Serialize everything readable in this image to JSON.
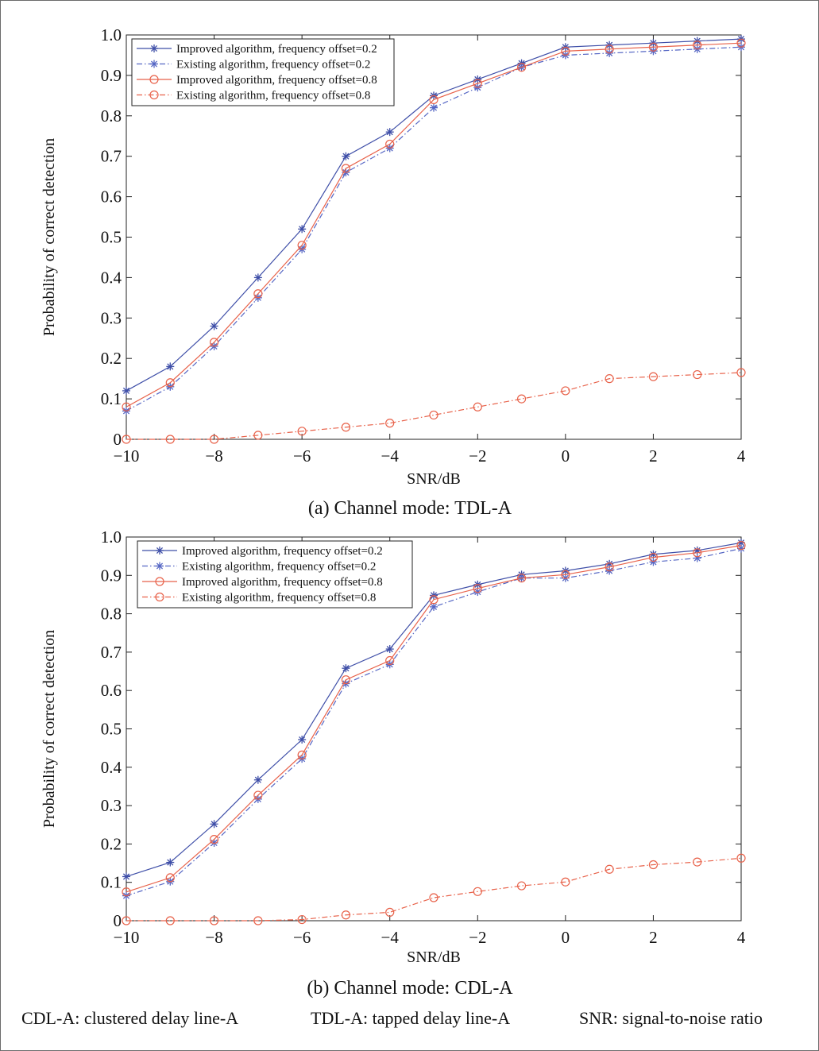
{
  "colors": {
    "improved_02": "#3f4fa8",
    "existing_02": "#5566c4",
    "improved_08": "#e8624a",
    "existing_08": "#e8624a"
  },
  "chart_data": [
    {
      "type": "line",
      "caption": "(a) Channel mode: TDL-A",
      "xlabel": "SNR/dB",
      "ylabel": "Probability of correct detection",
      "xlim": [
        -10,
        4
      ],
      "ylim": [
        0,
        1.0
      ],
      "xticks": [
        "−10",
        "−8",
        "−6",
        "−4",
        "−2",
        "0",
        "2",
        "4"
      ],
      "yticks": [
        "0",
        "0.1",
        "0.2",
        "0.3",
        "0.4",
        "0.5",
        "0.6",
        "0.7",
        "0.8",
        "0.9",
        "1.0"
      ],
      "grid": false,
      "legend_position": "top-left",
      "x": [
        -10,
        -9,
        -8,
        -7,
        -6,
        -5,
        -4,
        -3,
        -2,
        -1,
        0,
        1,
        2,
        3,
        4
      ],
      "series": [
        {
          "name": "Improved algorithm, frequency offset=0.2",
          "marker": "star",
          "line": "solid",
          "color": "#3f4fa8",
          "values": [
            0.12,
            0.18,
            0.28,
            0.4,
            0.52,
            0.7,
            0.76,
            0.85,
            0.89,
            0.93,
            0.97,
            0.975,
            0.98,
            0.985,
            0.99
          ]
        },
        {
          "name": "Existing algorithm, frequency offset=0.2",
          "marker": "star",
          "line": "dashdot",
          "color": "#5566c4",
          "values": [
            0.07,
            0.13,
            0.23,
            0.35,
            0.47,
            0.66,
            0.72,
            0.82,
            0.87,
            0.92,
            0.95,
            0.955,
            0.96,
            0.965,
            0.97
          ]
        },
        {
          "name": "Improved algorithm, frequency offset=0.8",
          "marker": "circle",
          "line": "solid",
          "color": "#e8624a",
          "values": [
            0.08,
            0.14,
            0.24,
            0.36,
            0.48,
            0.67,
            0.73,
            0.84,
            0.88,
            0.92,
            0.96,
            0.965,
            0.97,
            0.975,
            0.98
          ]
        },
        {
          "name": "Existing algorithm, frequency offset=0.8",
          "marker": "circle",
          "line": "dashdot",
          "color": "#e8624a",
          "values": [
            0.0,
            0.0,
            0.0,
            0.01,
            0.02,
            0.03,
            0.04,
            0.06,
            0.08,
            0.1,
            0.12,
            0.15,
            0.155,
            0.16,
            0.165
          ]
        }
      ]
    },
    {
      "type": "line",
      "caption": "(b) Channel mode: CDL-A",
      "xlabel": "SNR/dB",
      "ylabel": "Probability of correct detection",
      "xlim": [
        -10,
        4
      ],
      "ylim": [
        0,
        1.0
      ],
      "xticks": [
        "−10",
        "−8",
        "−6",
        "−4",
        "−2",
        "0",
        "2",
        "4"
      ],
      "yticks": [
        "0",
        "0.1",
        "0.2",
        "0.3",
        "0.4",
        "0.5",
        "0.6",
        "0.7",
        "0.8",
        "0.9",
        "1.0"
      ],
      "grid": false,
      "legend_position": "top-left",
      "x": [
        -10,
        -9,
        -8,
        -7,
        -6,
        -5,
        -4,
        -3,
        -2,
        -1,
        0,
        1,
        2,
        3,
        4
      ],
      "series": [
        {
          "name": "Improved algorithm, frequency offset=0.2",
          "marker": "star",
          "line": "solid",
          "color": "#3f4fa8",
          "values": [
            0.115,
            0.152,
            0.252,
            0.367,
            0.472,
            0.658,
            0.708,
            0.848,
            0.876,
            0.902,
            0.912,
            0.93,
            0.955,
            0.965,
            0.985
          ]
        },
        {
          "name": "Existing algorithm, frequency offset=0.2",
          "marker": "star",
          "line": "dashdot",
          "color": "#5566c4",
          "values": [
            0.065,
            0.102,
            0.203,
            0.317,
            0.422,
            0.618,
            0.668,
            0.818,
            0.857,
            0.893,
            0.893,
            0.912,
            0.935,
            0.945,
            0.97
          ]
        },
        {
          "name": "Improved algorithm, frequency offset=0.8",
          "marker": "circle",
          "line": "solid",
          "color": "#e8624a",
          "values": [
            0.075,
            0.112,
            0.212,
            0.327,
            0.432,
            0.628,
            0.678,
            0.837,
            0.866,
            0.893,
            0.902,
            0.922,
            0.947,
            0.959,
            0.978
          ]
        },
        {
          "name": "Existing algorithm, frequency offset=0.8",
          "marker": "circle",
          "line": "dashdot",
          "color": "#e8624a",
          "values": [
            0.0,
            0.0,
            0.0,
            0.0,
            0.003,
            0.015,
            0.022,
            0.06,
            0.076,
            0.091,
            0.101,
            0.134,
            0.146,
            0.153,
            0.163
          ]
        }
      ]
    }
  ],
  "footnote": {
    "cdl": "CDL-A: clustered delay line-A",
    "tdl": "TDL-A: tapped delay line-A",
    "snr": "SNR: signal-to-noise ratio"
  }
}
